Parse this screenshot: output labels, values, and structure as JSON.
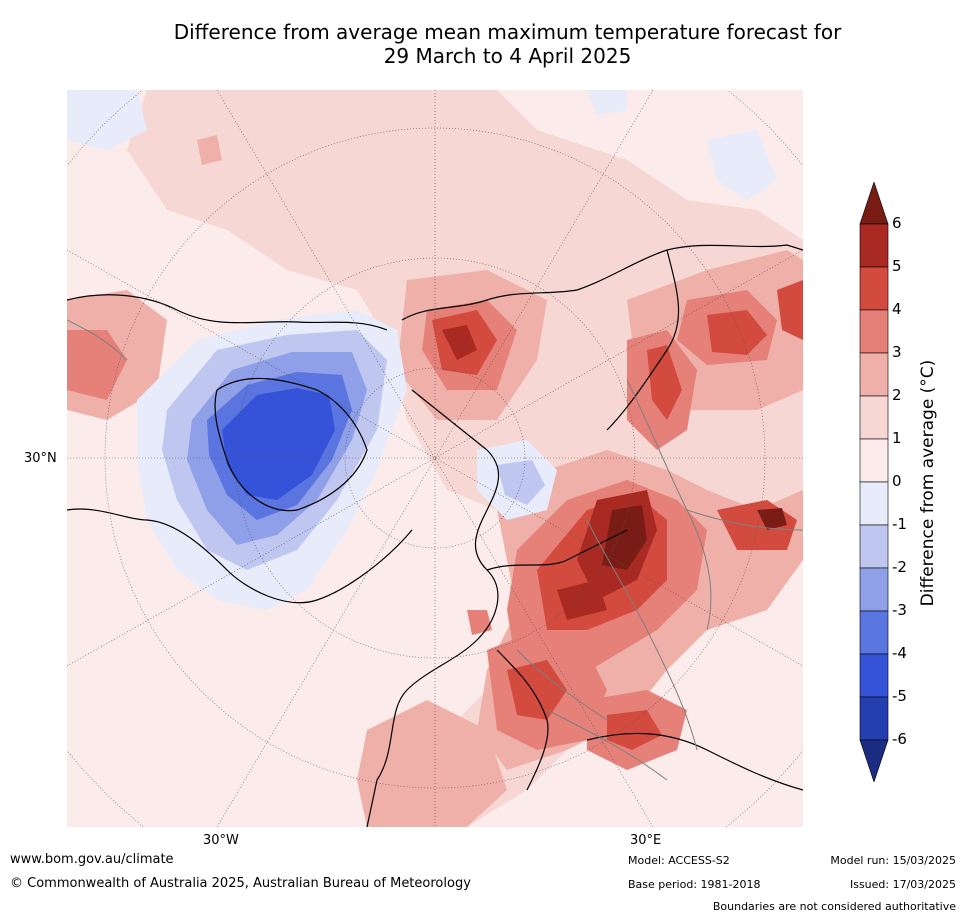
{
  "title": {
    "line1": "Difference from average mean maximum temperature forecast for",
    "line2": "29 March to 4 April 2025"
  },
  "map": {
    "lat_labels": [
      "30°N"
    ],
    "lon_labels": [
      "30°W",
      "30°E"
    ]
  },
  "legend": {
    "label": "Difference from average (°C)",
    "ticks": [
      "6",
      "5",
      "4",
      "3",
      "2",
      "1",
      "0",
      "-1",
      "-2",
      "-3",
      "-4",
      "-5",
      "-6"
    ],
    "colors": [
      "#7a1c16",
      "#a82a22",
      "#d34b3f",
      "#e58179",
      "#efb0aa",
      "#f6d7d3",
      "#fbeceb",
      "#e7ebfa",
      "#bfc7f0",
      "#8f9fe8",
      "#5a74e0",
      "#3453d9",
      "#243fb0",
      "#1c2c82"
    ]
  },
  "footer": {
    "website": "www.bom.gov.au/climate",
    "copyright": "© Commonwealth of Australia 2025, Australian Bureau of Meteorology",
    "model": "Model: ACCESS-S2",
    "base_period": "Base period: 1981-2018",
    "model_run": "Model run: 15/03/2025",
    "issued": "Issued: 17/03/2025",
    "disclaimer": "Boundaries are not considered authoritative"
  }
}
